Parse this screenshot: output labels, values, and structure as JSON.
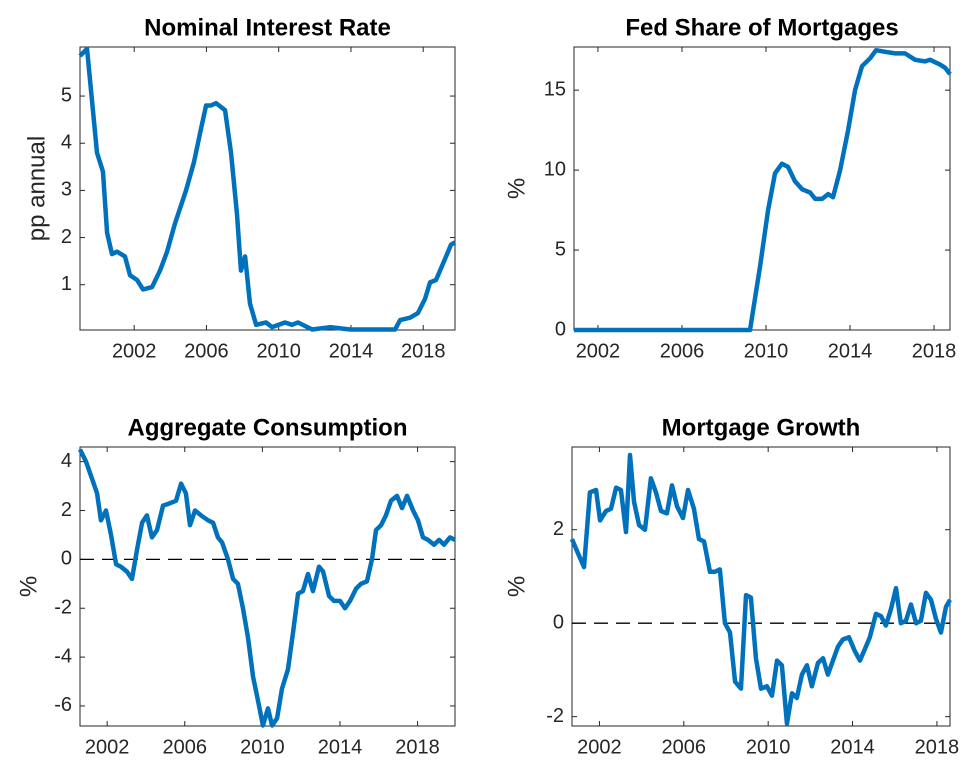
{
  "chart_data": [
    {
      "type": "line",
      "title": "Nominal Interest Rate",
      "ylabel": "pp annual",
      "x": [
        1999.0,
        1999.39,
        1999.94,
        2000.27,
        2000.5,
        2000.77,
        2001.05,
        2001.49,
        2001.77,
        2002.16,
        2002.49,
        2002.99,
        2003.43,
        2003.82,
        2004.26,
        2004.87,
        2005.31,
        2005.64,
        2005.98,
        2006.25,
        2006.53,
        2007.03,
        2007.36,
        2007.69,
        2007.91,
        2008.14,
        2008.41,
        2008.75,
        2009.3,
        2009.63,
        2010.35,
        2010.74,
        2011.07,
        2011.85,
        2012.84,
        2013.95,
        2015.06,
        2016.44,
        2016.72,
        2017.27,
        2017.71,
        2018.1,
        2018.38,
        2018.71,
        2019.1,
        2019.54,
        2019.76
      ],
      "series": [
        {
          "color": "#0072bd",
          "values": [
            5.85,
            6.0,
            3.8,
            3.4,
            2.1,
            1.65,
            1.7,
            1.6,
            1.2,
            1.1,
            0.9,
            0.95,
            1.3,
            1.7,
            2.3,
            3.0,
            3.6,
            4.2,
            4.8,
            4.8,
            4.85,
            4.7,
            3.8,
            2.5,
            1.3,
            1.6,
            0.6,
            0.15,
            0.2,
            0.1,
            0.2,
            0.15,
            0.2,
            0.05,
            0.1,
            0.05,
            0.05,
            0.05,
            0.25,
            0.3,
            0.4,
            0.7,
            1.05,
            1.1,
            1.45,
            1.85,
            1.9
          ]
        }
      ],
      "xlim": [
        1999.0,
        2019.76
      ],
      "ylim": [
        0.04,
        6.04
      ],
      "xticks": [
        2002,
        2006,
        2010,
        2014,
        2018
      ],
      "yticks": [
        1,
        2,
        3,
        4,
        5
      ],
      "zero_line": false
    },
    {
      "type": "line",
      "title": "Fed Share of Mortgages",
      "ylabel": "%",
      "x": [
        2000.86,
        2009.24,
        2009.72,
        2010.1,
        2010.43,
        2010.76,
        2011.05,
        2011.38,
        2011.72,
        2012.1,
        2012.34,
        2012.67,
        2012.96,
        2013.19,
        2013.53,
        2013.91,
        2014.24,
        2014.57,
        2014.96,
        2015.24,
        2015.67,
        2016.15,
        2016.62,
        2017.1,
        2017.57,
        2017.81,
        2018.29,
        2018.53,
        2018.76
      ],
      "series": [
        {
          "color": "#0072bd",
          "values": [
            0,
            0,
            4,
            7.5,
            9.8,
            10.4,
            10.2,
            9.3,
            8.8,
            8.6,
            8.2,
            8.2,
            8.5,
            8.3,
            10,
            12.5,
            15.0,
            16.5,
            17.0,
            17.5,
            17.4,
            17.3,
            17.3,
            16.9,
            16.8,
            16.9,
            16.6,
            16.4,
            16.0
          ]
        }
      ],
      "xlim": [
        2000.86,
        2018.76
      ],
      "ylim": [
        0,
        17.7
      ],
      "xticks": [
        2002,
        2006,
        2010,
        2014,
        2018
      ],
      "yticks": [
        0,
        5,
        10,
        15
      ],
      "zero_line": false
    },
    {
      "type": "line",
      "title": "Aggregate Consumption",
      "ylabel": "%",
      "x": [
        2000.6,
        2000.91,
        2001.22,
        2001.48,
        2001.68,
        2001.94,
        2002.2,
        2002.46,
        2002.71,
        2003.02,
        2003.28,
        2003.54,
        2003.8,
        2004.05,
        2004.31,
        2004.57,
        2004.88,
        2005.24,
        2005.55,
        2005.81,
        2006.06,
        2006.27,
        2006.53,
        2006.84,
        2007.2,
        2007.46,
        2007.71,
        2007.92,
        2008.23,
        2008.49,
        2008.74,
        2009.0,
        2009.26,
        2009.52,
        2009.78,
        2010.03,
        2010.29,
        2010.5,
        2010.76,
        2011.01,
        2011.32,
        2011.58,
        2011.84,
        2012.09,
        2012.35,
        2012.61,
        2012.92,
        2013.13,
        2013.44,
        2013.69,
        2014.0,
        2014.26,
        2014.52,
        2014.83,
        2015.08,
        2015.39,
        2015.65,
        2015.86,
        2016.12,
        2016.37,
        2016.63,
        2016.94,
        2017.2,
        2017.46,
        2017.77,
        2018.02,
        2018.28,
        2018.54,
        2018.85,
        2019.11,
        2019.36,
        2019.67,
        2019.93
      ],
      "series": [
        {
          "color": "#0072bd",
          "values": [
            4.5,
            4.0,
            3.3,
            2.7,
            1.6,
            2.0,
            1.0,
            -0.2,
            -0.3,
            -0.5,
            -0.8,
            0.4,
            1.5,
            1.8,
            0.9,
            1.2,
            2.2,
            2.3,
            2.4,
            3.1,
            2.7,
            1.4,
            2.0,
            1.8,
            1.6,
            1.5,
            0.9,
            0.7,
            0.0,
            -0.8,
            -1.0,
            -2.0,
            -3.2,
            -4.8,
            -5.8,
            -6.8,
            -6.1,
            -6.8,
            -6.5,
            -5.3,
            -4.5,
            -3.0,
            -1.4,
            -1.3,
            -0.6,
            -1.3,
            -0.3,
            -0.5,
            -1.5,
            -1.7,
            -1.7,
            -2.0,
            -1.7,
            -1.2,
            -1.0,
            -0.9,
            0.0,
            1.2,
            1.4,
            1.8,
            2.4,
            2.6,
            2.1,
            2.6,
            2.0,
            1.6,
            0.9,
            0.8,
            0.6,
            0.8,
            0.6,
            0.9,
            0.8
          ]
        }
      ],
      "xlim": [
        2000.6,
        2019.93
      ],
      "ylim": [
        -6.82,
        4.6
      ],
      "xticks": [
        2002,
        2006,
        2010,
        2014,
        2018
      ],
      "yticks": [
        -6,
        -4,
        -2,
        0,
        2,
        4
      ],
      "zero_line": true
    },
    {
      "type": "line",
      "title": "Mortgage Growth",
      "ylabel": "%",
      "x": [
        2000.7,
        2000.98,
        2001.27,
        2001.55,
        2001.84,
        2002.03,
        2002.31,
        2002.55,
        2002.79,
        2003.02,
        2003.26,
        2003.45,
        2003.64,
        2003.88,
        2004.16,
        2004.44,
        2004.68,
        2004.92,
        2005.2,
        2005.44,
        2005.68,
        2005.96,
        2006.2,
        2006.48,
        2006.72,
        2006.96,
        2007.24,
        2007.48,
        2007.71,
        2007.95,
        2008.19,
        2008.43,
        2008.71,
        2008.95,
        2009.18,
        2009.42,
        2009.66,
        2009.94,
        2010.18,
        2010.42,
        2010.65,
        2010.89,
        2011.13,
        2011.36,
        2011.6,
        2011.84,
        2012.07,
        2012.36,
        2012.6,
        2012.83,
        2013.07,
        2013.31,
        2013.54,
        2013.83,
        2014.11,
        2014.35,
        2014.59,
        2014.82,
        2015.11,
        2015.35,
        2015.58,
        2015.82,
        2016.06,
        2016.29,
        2016.53,
        2016.77,
        2017.01,
        2017.24,
        2017.48,
        2017.72,
        2017.95,
        2018.19,
        2018.43,
        2018.62
      ],
      "series": [
        {
          "color": "#0072bd",
          "values": [
            1.8,
            1.5,
            1.2,
            2.8,
            2.85,
            2.2,
            2.4,
            2.45,
            2.9,
            2.85,
            1.95,
            3.6,
            2.6,
            2.1,
            2.0,
            3.1,
            2.8,
            2.4,
            2.35,
            2.95,
            2.5,
            2.25,
            2.85,
            2.45,
            1.8,
            1.75,
            1.1,
            1.1,
            1.15,
            0.0,
            -0.2,
            -1.25,
            -1.4,
            0.6,
            0.55,
            -0.75,
            -1.4,
            -1.35,
            -1.55,
            -0.8,
            -0.9,
            -2.15,
            -1.5,
            -1.6,
            -1.1,
            -0.9,
            -1.35,
            -0.85,
            -0.75,
            -1.1,
            -0.8,
            -0.5,
            -0.35,
            -0.3,
            -0.6,
            -0.8,
            -0.55,
            -0.3,
            0.2,
            0.15,
            -0.05,
            0.3,
            0.75,
            0.0,
            0.05,
            0.4,
            0.0,
            0.05,
            0.65,
            0.5,
            0.1,
            -0.2,
            0.35,
            0.5
          ]
        }
      ],
      "xlim": [
        2000.7,
        2018.62
      ],
      "ylim": [
        -2.2,
        3.77
      ],
      "xticks": [
        2002,
        2006,
        2010,
        2014,
        2018
      ],
      "yticks": [
        -2,
        0,
        2
      ],
      "zero_line": true
    }
  ]
}
